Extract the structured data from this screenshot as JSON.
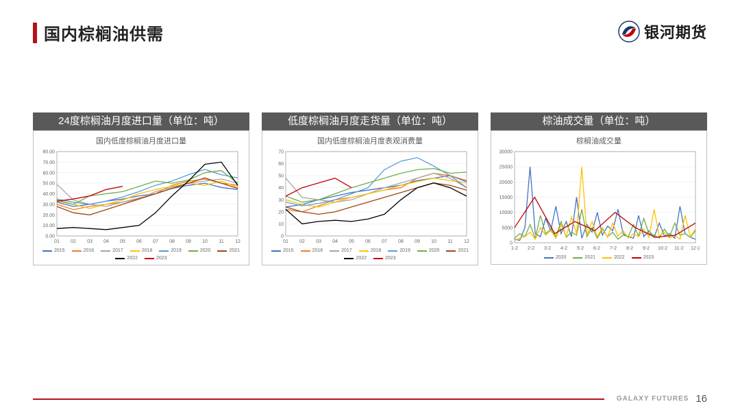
{
  "header": {
    "title": "国内棕榈油供需",
    "brand_text": "银河期货"
  },
  "footer": {
    "brand": "GALAXY FUTURES",
    "page": "16",
    "line_color": "#b5121b"
  },
  "colors": {
    "title_bar": "#b5121b",
    "panel_title_bg": "#595959",
    "grid": "#e6e6e6",
    "axis": "#666666"
  },
  "categories12": [
    "01",
    "02",
    "03",
    "04",
    "05",
    "06",
    "07",
    "08",
    "09",
    "10",
    "11",
    "12"
  ],
  "series_colors": {
    "2015": "#4472c4",
    "2016": "#ed7d31",
    "2017": "#a5a5a5",
    "2018": "#ffc000",
    "2019": "#5b9bd5",
    "2020": "#70ad47",
    "2021": "#9e480e",
    "2022": "#000000",
    "2023": "#c00000"
  },
  "chart1": {
    "panel_title": "24度棕榈油月度进口量（单位：吨）",
    "subtitle": "国内低度棕榈油月度进口量",
    "type": "line",
    "ylim": [
      0,
      80
    ],
    "ytick_step": 10,
    "y_fmt_suffix": ".00",
    "series": {
      "2015": [
        32,
        28,
        30,
        33,
        35,
        38,
        40,
        45,
        48,
        50,
        46,
        44
      ],
      "2016": [
        30,
        25,
        28,
        30,
        32,
        36,
        40,
        48,
        52,
        54,
        50,
        48
      ],
      "2017": [
        49,
        34,
        30,
        28,
        32,
        35,
        42,
        46,
        50,
        52,
        54,
        50
      ],
      "2018": [
        33,
        30,
        26,
        30,
        34,
        40,
        44,
        47,
        50,
        48,
        52,
        46
      ],
      "2019": [
        35,
        32,
        30,
        33,
        37,
        42,
        48,
        52,
        58,
        63,
        58,
        55
      ],
      "2020": [
        34,
        30,
        38,
        40,
        42,
        47,
        52,
        50,
        53,
        60,
        62,
        50
      ],
      "2021": [
        28,
        22,
        20,
        25,
        30,
        35,
        40,
        45,
        50,
        55,
        50,
        45
      ],
      "2022": [
        7,
        8,
        7,
        6,
        8,
        10,
        22,
        38,
        52,
        68,
        70,
        48
      ],
      "2023": [
        33,
        35,
        38,
        44,
        47,
        null,
        null,
        null,
        null,
        null,
        null,
        null
      ]
    },
    "legend": [
      "2015",
      "2016",
      "2017",
      "2018",
      "2019",
      "2020",
      "2021",
      "2022",
      "2023"
    ]
  },
  "chart2": {
    "panel_title": "低度棕榈油月度走货量（单位：吨）",
    "subtitle": "国内低度棕榈油月度表观消费量",
    "type": "line",
    "ylim": [
      0,
      70
    ],
    "ytick_step": 10,
    "series": {
      "2015": [
        24,
        26,
        30,
        33,
        36,
        38,
        40,
        42,
        46,
        48,
        50,
        45
      ],
      "2016": [
        22,
        20,
        25,
        30,
        32,
        35,
        38,
        40,
        48,
        52,
        50,
        46
      ],
      "2017": [
        48,
        32,
        30,
        28,
        30,
        35,
        40,
        44,
        48,
        52,
        48,
        40
      ],
      "2018": [
        30,
        26,
        24,
        28,
        32,
        35,
        38,
        42,
        45,
        48,
        46,
        44
      ],
      "2019": [
        28,
        25,
        27,
        30,
        35,
        40,
        55,
        62,
        65,
        58,
        50,
        40
      ],
      "2020": [
        33,
        28,
        30,
        35,
        40,
        44,
        48,
        52,
        55,
        56,
        52,
        53
      ],
      "2021": [
        24,
        20,
        18,
        20,
        24,
        28,
        32,
        36,
        40,
        44,
        42,
        38
      ],
      "2022": [
        22,
        10,
        12,
        13,
        12,
        14,
        18,
        30,
        40,
        44,
        40,
        33
      ],
      "2023": [
        33,
        40,
        44,
        48,
        40,
        null,
        null,
        null,
        null,
        null,
        null,
        null
      ]
    },
    "legend": [
      "2015",
      "2016",
      "2017",
      "2018",
      "2019",
      "2020",
      "2021",
      "2022",
      "2023"
    ]
  },
  "chart3": {
    "panel_title": "棕油成交量（单位：吨）",
    "subtitle": "棕榈油成交量",
    "type": "line",
    "ylim": [
      0,
      30000
    ],
    "ytick_step": 5000,
    "x_labels": [
      "1-2",
      "2-2",
      "3-2",
      "4-2",
      "5-2",
      "6-2",
      "7-2",
      "8-2",
      "9-2",
      "10-2",
      "11-2",
      "12-2"
    ],
    "series": {
      "2020": [
        1200,
        800,
        5000,
        25000,
        3000,
        2000,
        8000,
        4000,
        12000,
        3000,
        7000,
        2000,
        15000,
        1500,
        6000,
        3500,
        10000,
        2500,
        5500,
        4000,
        11000,
        3000,
        2000,
        1500,
        9000,
        2000,
        4000,
        1800,
        6500,
        2200,
        3000,
        1500,
        12000,
        3000,
        1800,
        1200
      ],
      "2021": [
        1500,
        3000,
        2000,
        6000,
        1500,
        9000,
        3000,
        4500,
        2000,
        7000,
        1800,
        3500,
        2500,
        11000,
        2000,
        5000,
        1500,
        4500,
        2000,
        3500,
        1200,
        2500,
        2000,
        6000,
        2200,
        8000,
        3000,
        2500,
        1500,
        4500,
        2000,
        6500,
        2500,
        3000,
        1800,
        4000
      ],
      "2022": [
        800,
        1500,
        2000,
        3500,
        1200,
        5000,
        2500,
        4000,
        1500,
        6000,
        2000,
        8500,
        3000,
        25000,
        2500,
        7000,
        2000,
        5000,
        1800,
        6500,
        2200,
        4000,
        1500,
        3000,
        2000,
        4500,
        1800,
        11000,
        2200,
        3500,
        1500,
        2500,
        1200,
        9000,
        2000,
        4500
      ],
      "2023": [
        5000,
        15000,
        3000,
        7000,
        4000,
        10000,
        5000,
        1800,
        2500,
        6500
      ]
    },
    "legend": [
      "2020",
      "2021",
      "2022",
      "2023"
    ],
    "legend_colors": {
      "2020": "#4472c4",
      "2021": "#70ad47",
      "2022": "#ffc000",
      "2023": "#c00000"
    }
  }
}
